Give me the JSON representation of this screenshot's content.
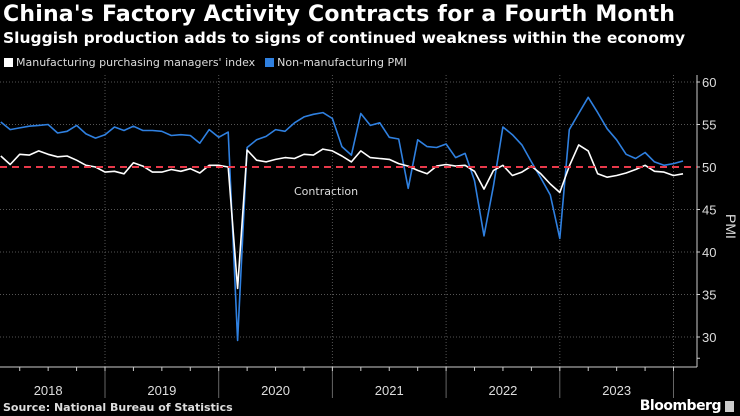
{
  "header": {
    "title": "China's Factory Activity Contracts for a Fourth Month",
    "subtitle": "Sluggish production adds to signs of continued weakness within the economy"
  },
  "footer": {
    "source": "Source: National Bureau of Statistics",
    "brand": "Bloomberg"
  },
  "chart_data": {
    "type": "line",
    "title": "China's Factory Activity Contracts for a Fourth Month",
    "ylabel": "PMI",
    "xlabel": "",
    "ylim": [
      27,
      61
    ],
    "yticks": [
      30,
      35,
      40,
      45,
      50,
      55,
      60
    ],
    "year_labels": [
      "2018",
      "2019",
      "2020",
      "2021",
      "2022",
      "2023"
    ],
    "x_start": "2018-01",
    "x_end": "2024-01",
    "frequency": "monthly",
    "reference_line": {
      "value": 50,
      "label": "Contraction",
      "color": "#e8394a"
    },
    "legend_position": "top-left",
    "grid": true,
    "series": [
      {
        "name": "Manufacturing purchasing managers' index",
        "color": "#ffffff",
        "values": [
          51.3,
          50.3,
          51.5,
          51.4,
          51.9,
          51.5,
          51.2,
          51.3,
          50.8,
          50.2,
          50.0,
          49.4,
          49.5,
          49.2,
          50.5,
          50.1,
          49.4,
          49.4,
          49.7,
          49.5,
          49.8,
          49.3,
          50.2,
          50.2,
          50.0,
          35.7,
          52.0,
          50.8,
          50.6,
          50.9,
          51.1,
          51.0,
          51.5,
          51.4,
          52.1,
          51.9,
          51.3,
          50.6,
          51.9,
          51.1,
          51.0,
          50.9,
          50.4,
          50.1,
          49.6,
          49.2,
          50.1,
          50.3,
          50.1,
          50.2,
          49.5,
          47.4,
          49.6,
          50.2,
          49.0,
          49.4,
          50.1,
          49.2,
          48.0,
          47.0,
          50.1,
          52.6,
          51.9,
          49.2,
          48.8,
          49.0,
          49.3,
          49.7,
          50.2,
          49.5,
          49.4,
          49.0,
          49.2
        ]
      },
      {
        "name": "Non-manufacturing PMI",
        "color": "#2f80e0",
        "values": [
          55.3,
          54.4,
          54.6,
          54.8,
          54.9,
          55.0,
          54.0,
          54.2,
          54.9,
          53.9,
          53.4,
          53.8,
          54.7,
          54.3,
          54.8,
          54.3,
          54.3,
          54.2,
          53.7,
          53.8,
          53.7,
          52.8,
          54.4,
          53.5,
          54.1,
          29.6,
          52.3,
          53.2,
          53.6,
          54.4,
          54.2,
          55.2,
          55.9,
          56.2,
          56.4,
          55.7,
          52.4,
          51.4,
          56.3,
          54.9,
          55.2,
          53.5,
          53.3,
          47.5,
          53.2,
          52.4,
          52.3,
          52.7,
          51.1,
          51.6,
          48.4,
          41.9,
          47.8,
          54.7,
          53.8,
          52.6,
          50.6,
          48.7,
          46.7,
          41.6,
          54.4,
          56.3,
          58.2,
          56.4,
          54.5,
          53.2,
          51.5,
          51.0,
          51.7,
          50.6,
          50.2,
          50.4,
          50.7
        ]
      }
    ]
  }
}
